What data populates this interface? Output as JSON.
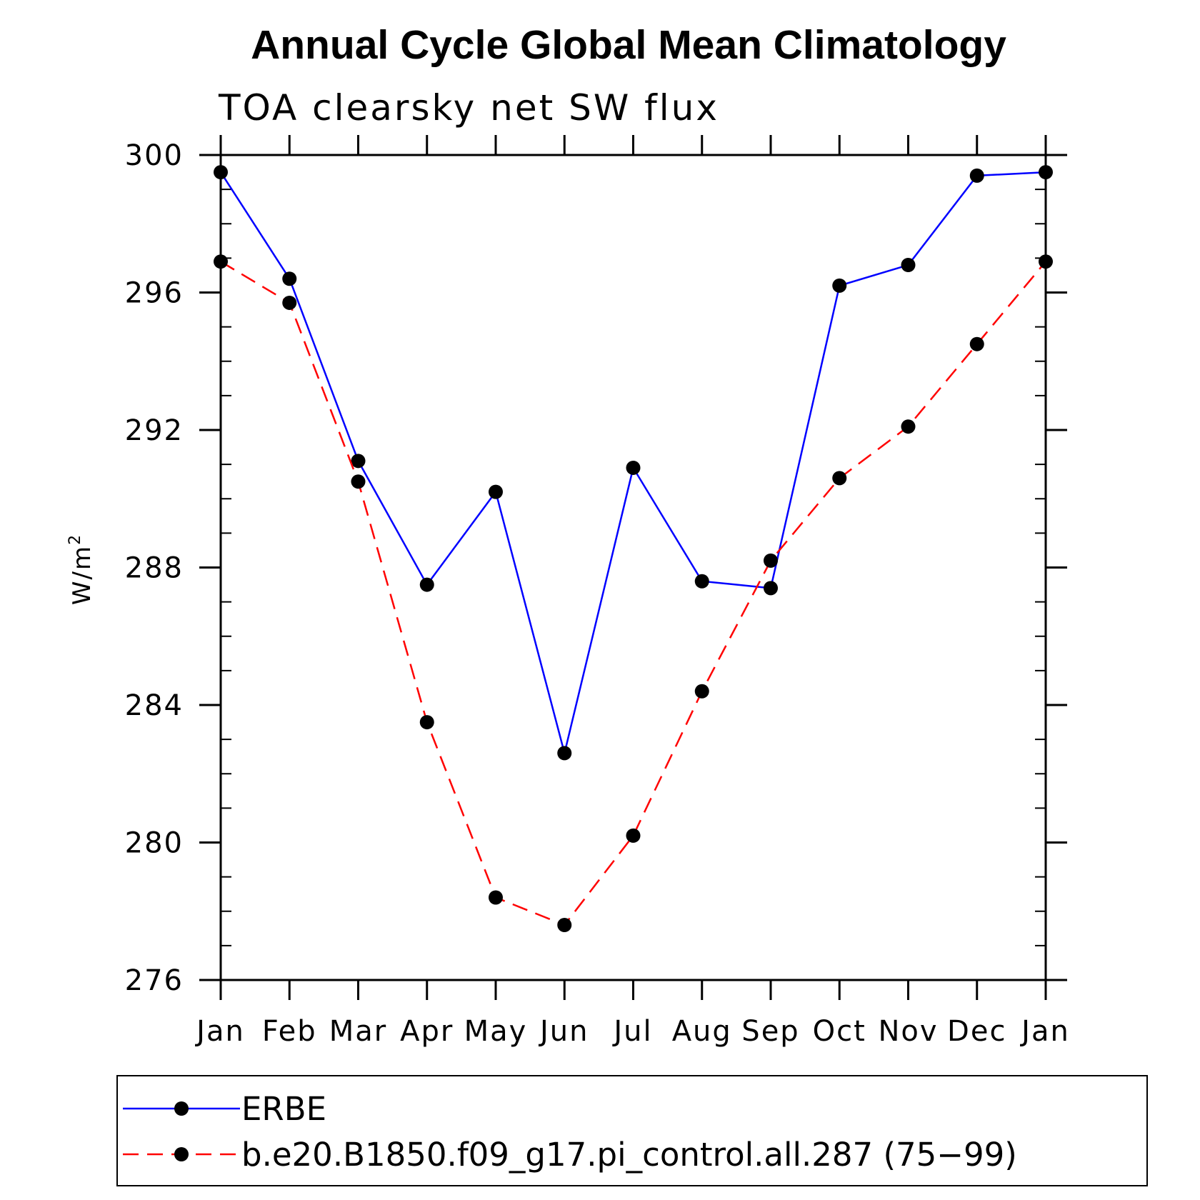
{
  "chart_data": {
    "type": "line",
    "title": "Annual Cycle Global Mean Climatology",
    "subtitle": "TOA clearsky net SW flux",
    "ylabel": "W/m",
    "ylabel_superscript": "2",
    "xlabel": "",
    "categories": [
      "Jan",
      "Feb",
      "Mar",
      "Apr",
      "May",
      "Jun",
      "Jul",
      "Aug",
      "Sep",
      "Oct",
      "Nov",
      "Dec",
      "Jan"
    ],
    "ylim": [
      276,
      300
    ],
    "yticks": [
      276,
      280,
      284,
      288,
      292,
      296,
      300
    ],
    "yticks_labels": [
      "276",
      "280",
      "284",
      "288",
      "292",
      "296",
      "300"
    ],
    "grid": false,
    "legend_position": "bottom",
    "series": [
      {
        "name": "ERBE",
        "color": "#0000ff",
        "dash": "solid",
        "marker": "filled-circle",
        "values": [
          299.5,
          296.4,
          291.1,
          287.5,
          290.2,
          282.6,
          290.9,
          287.6,
          287.4,
          296.2,
          296.8,
          299.4,
          299.5
        ]
      },
      {
        "name": "b.e20.B1850.f09_g17.pi_control.all.287 (75−99)",
        "color": "#ff0000",
        "dash": "dashed",
        "marker": "filled-circle",
        "values": [
          296.9,
          295.7,
          290.5,
          283.5,
          278.4,
          277.6,
          280.2,
          284.4,
          288.2,
          290.6,
          292.1,
          294.5,
          296.9
        ]
      }
    ]
  }
}
